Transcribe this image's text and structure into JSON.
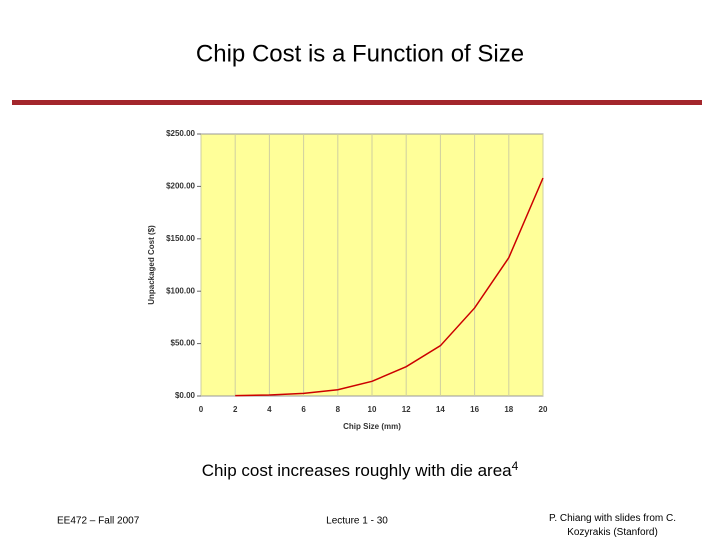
{
  "slide": {
    "title": "Chip Cost is a Function of Size",
    "caption": "Chip cost increases roughly with die area",
    "caption_superscript": "4",
    "footer_left": "EE472 – Fall 2007",
    "footer_center": "Lecture 1 - 30",
    "footer_right": "P. Chiang with slides from C. Kozyrakis (Stanford)"
  },
  "chart_data": {
    "type": "line",
    "x_label": "Chip Size (mm)",
    "y_label": "Unpackaged Cost ($)",
    "x": [
      2,
      4,
      6,
      8,
      10,
      12,
      14,
      16,
      18,
      20
    ],
    "values": [
      0.3,
      1,
      2.5,
      6,
      14,
      28,
      48,
      84,
      132,
      208
    ],
    "color": "#cc0000",
    "plot_background": "#ffff99",
    "xlim": [
      0,
      20
    ],
    "xticks": [
      0,
      2,
      4,
      6,
      8,
      10,
      12,
      14,
      16,
      18,
      20
    ],
    "ylim": [
      0,
      250
    ],
    "yticks": [
      {
        "value": 0,
        "label": "$0.00"
      },
      {
        "value": 50,
        "label": "$50.00"
      },
      {
        "value": 100,
        "label": "$100.00"
      },
      {
        "value": 150,
        "label": "$150.00"
      },
      {
        "value": 200,
        "label": "$200.00"
      },
      {
        "value": 250,
        "label": "$250.00"
      }
    ],
    "grid": true
  }
}
